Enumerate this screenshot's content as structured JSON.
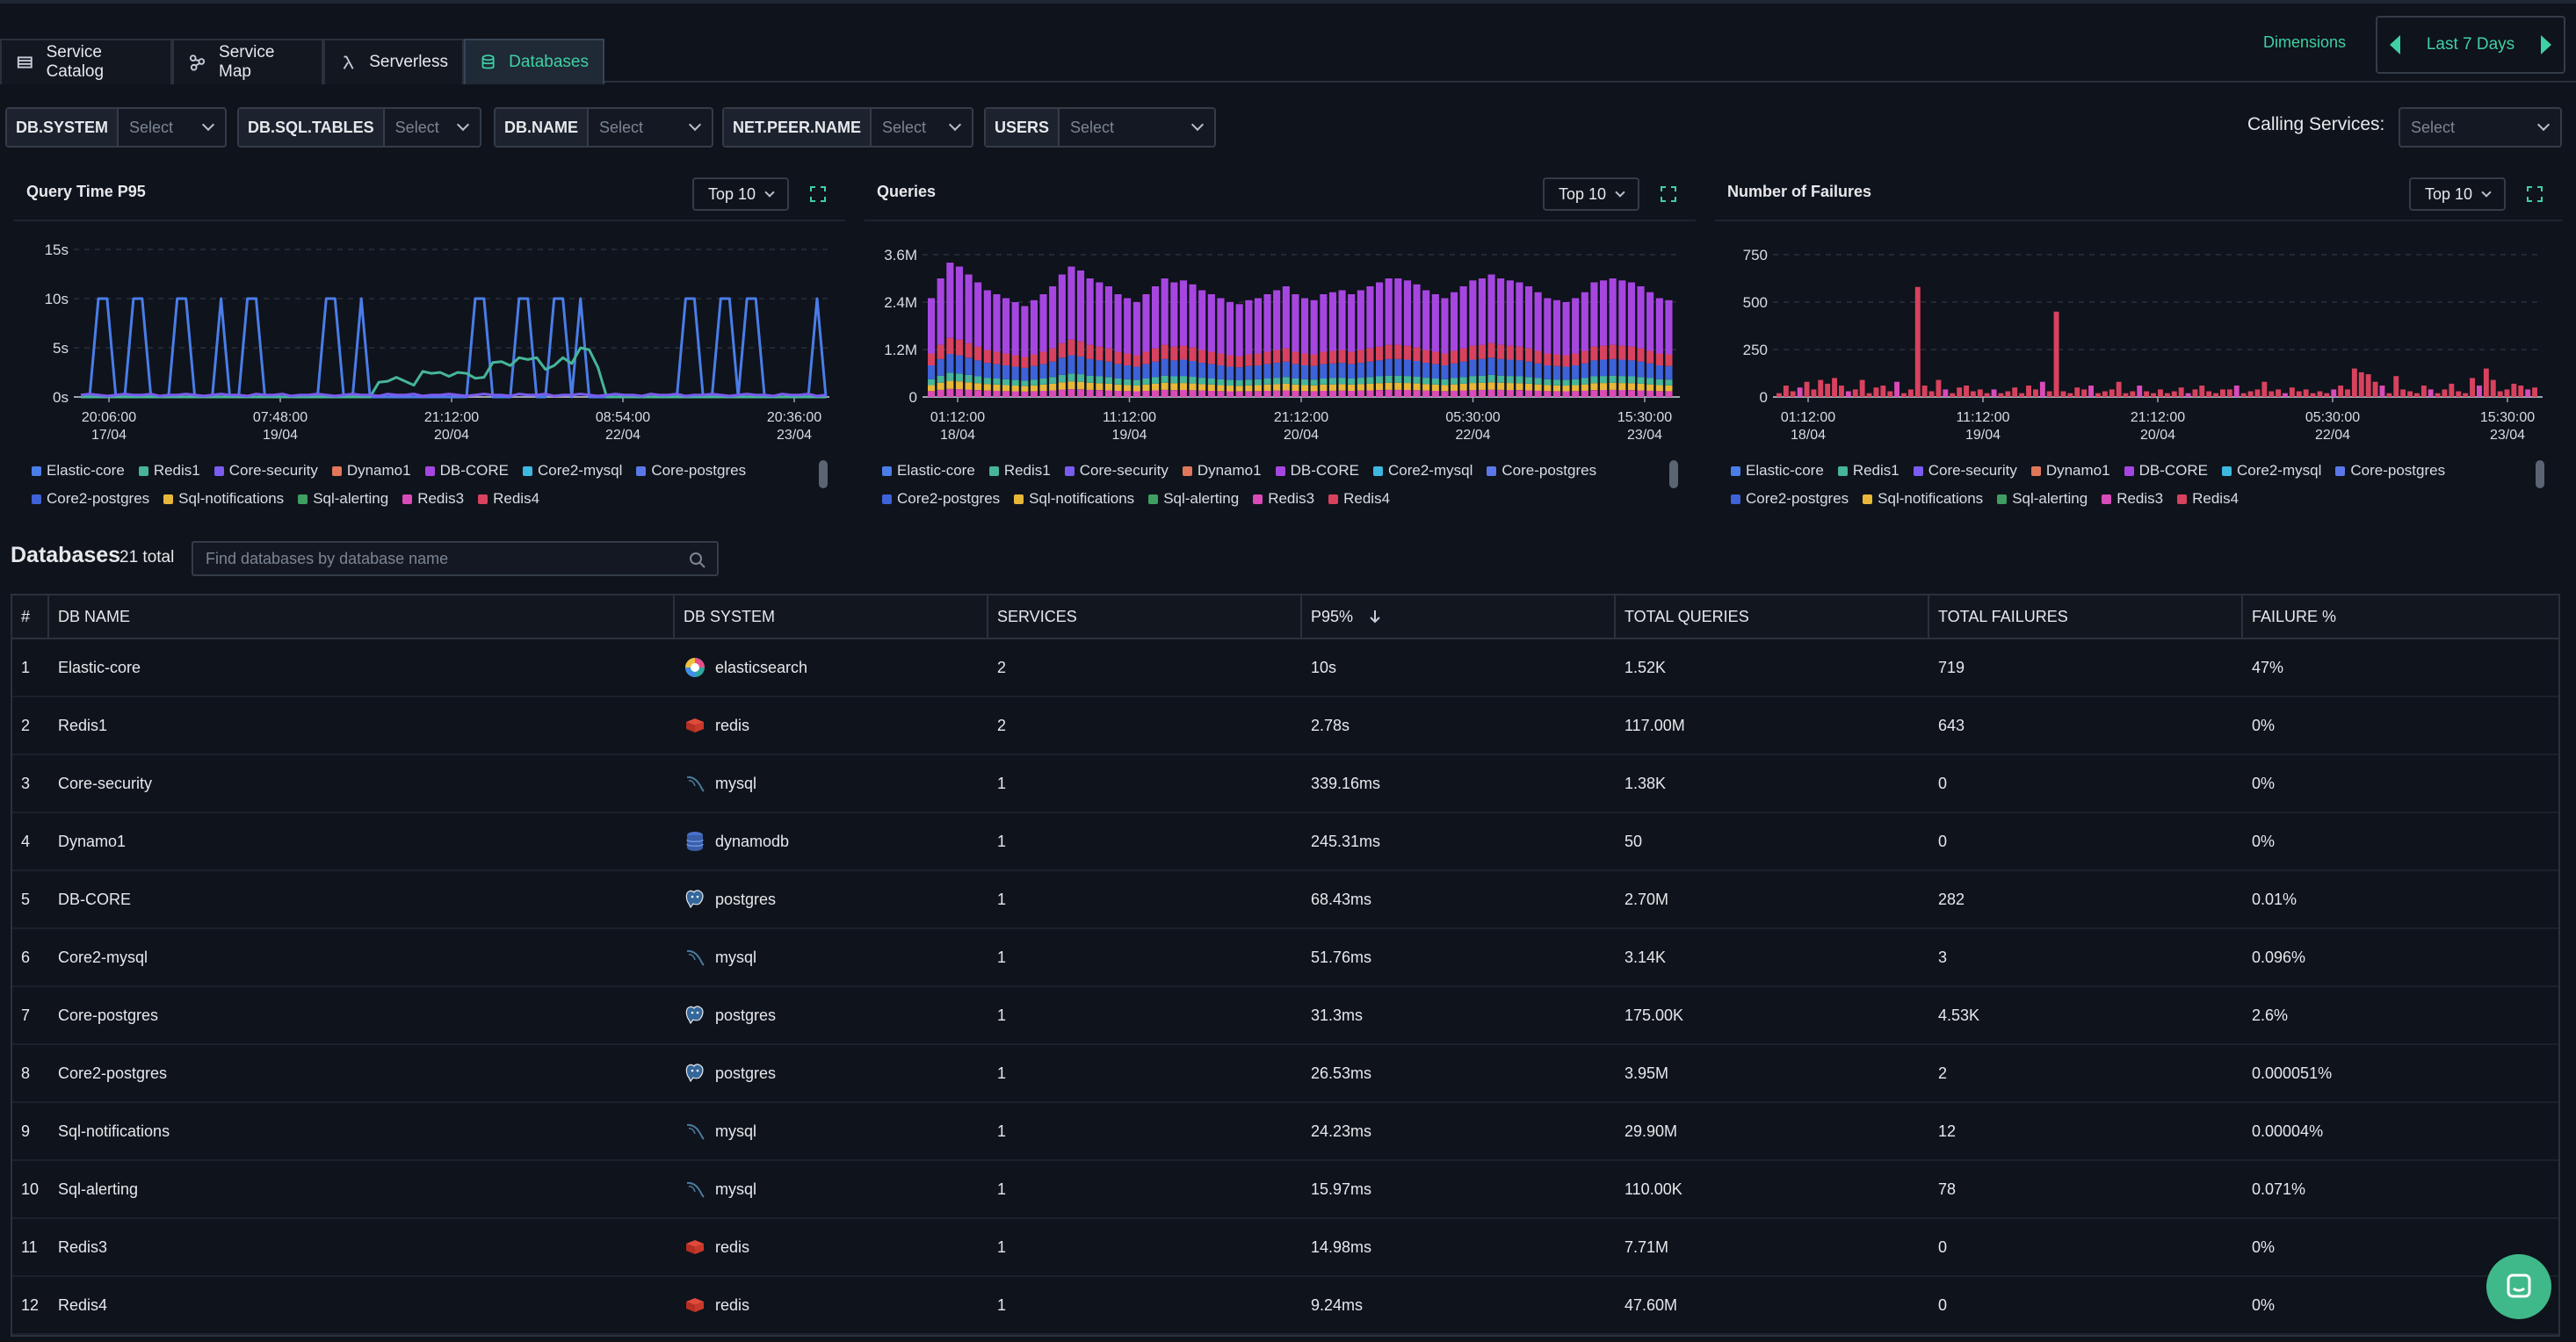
{
  "tabs": [
    {
      "label": "Service Catalog",
      "icon": "list-icon"
    },
    {
      "label": "Service Map",
      "icon": "map-icon"
    },
    {
      "label": "Serverless",
      "icon": "lambda-icon"
    },
    {
      "label": "Databases",
      "icon": "database-icon",
      "active": true
    }
  ],
  "header": {
    "dimensions_label": "Dimensions",
    "date_range": "Last 7 Days"
  },
  "filters": [
    {
      "label": "DB.SYSTEM",
      "placeholder": "Select"
    },
    {
      "label": "DB.SQL.TABLES",
      "placeholder": "Select"
    },
    {
      "label": "DB.NAME",
      "placeholder": "Select"
    },
    {
      "label": "NET.PEER.NAME",
      "placeholder": "Select"
    },
    {
      "label": "USERS",
      "placeholder": "Select"
    }
  ],
  "calling_services": {
    "label": "Calling Services:",
    "placeholder": "Select"
  },
  "colors": {
    "accent": "#3fd0a4",
    "series": {
      "Elastic-core": "#4a7de8",
      "Redis1": "#46b59a",
      "Core-security": "#7a5cf0",
      "Dynamo1": "#e0775a",
      "DB-CORE": "#a646e0",
      "Core2-mysql": "#3db8e0",
      "Core-postgres": "#5b78e8",
      "Core2-postgres": "#3e62d8",
      "Sql-notifications": "#e8b73a",
      "Sql-alerting": "#3f9e62",
      "Redis3": "#d84bb8",
      "Redis4": "#d8425e"
    }
  },
  "legend_series": [
    "Elastic-core",
    "Redis1",
    "Core-security",
    "Dynamo1",
    "DB-CORE",
    "Core2-mysql",
    "Core-postgres",
    "Core2-postgres",
    "Sql-notifications",
    "Sql-alerting",
    "Redis3",
    "Redis4"
  ],
  "chart_data": [
    {
      "type": "line",
      "title": "Query Time P95",
      "top_n": "Top 10",
      "y_ticks": [
        "15s",
        "10s",
        "5s",
        "0s"
      ],
      "ylim": [
        0,
        15
      ],
      "x_ticks": [
        {
          "time": "20:06:00",
          "date": "17/04"
        },
        {
          "time": "07:48:00",
          "date": "19/04"
        },
        {
          "time": "21:12:00",
          "date": "20/04"
        },
        {
          "time": "08:54:00",
          "date": "22/04"
        },
        {
          "time": "20:36:00",
          "date": "23/04"
        }
      ],
      "series": [
        {
          "name": "Elastic-core",
          "values": [
            0,
            0,
            10,
            10,
            0,
            0,
            10,
            10,
            0,
            0,
            0,
            10,
            10,
            0,
            0,
            0,
            10,
            0,
            0,
            10,
            10,
            0,
            0,
            0,
            0,
            0,
            0,
            0,
            10,
            10,
            0,
            0,
            10,
            0,
            0,
            0,
            0,
            0,
            0,
            0,
            0,
            0,
            0,
            0,
            0,
            10,
            10,
            0,
            0,
            0,
            10,
            10,
            0,
            0,
            10,
            10,
            0,
            10,
            0,
            0,
            0,
            0,
            0,
            0,
            0,
            0,
            0,
            0,
            0,
            10,
            10,
            0,
            0,
            10,
            10,
            0,
            10,
            10,
            0,
            0,
            0,
            0,
            0,
            0,
            10,
            0
          ]
        },
        {
          "name": "Redis1",
          "values": [
            0,
            0,
            0,
            0,
            0,
            0,
            0,
            0,
            0,
            0,
            0,
            0,
            0,
            0,
            0,
            0,
            0,
            0,
            0,
            0,
            0,
            0,
            0,
            0,
            0,
            0,
            0,
            0,
            0,
            0,
            0,
            0,
            0,
            0,
            1.5,
            1.6,
            2,
            1.6,
            1.2,
            2.6,
            2.4,
            2.5,
            2.1,
            2.5,
            2.4,
            1.9,
            2,
            3.5,
            3.6,
            3.2,
            4,
            3.8,
            4,
            2.8,
            3.2,
            4,
            3.4,
            5,
            4.8,
            3,
            0,
            0,
            0,
            0,
            0,
            0,
            0,
            0,
            0,
            0,
            0,
            0,
            0,
            0,
            0,
            0,
            0,
            0,
            0,
            0,
            0,
            0,
            0,
            0,
            0,
            0
          ]
        },
        {
          "name": "Core-security",
          "values": [
            0.2,
            0.3,
            0.2,
            0.1,
            0.2,
            0.3,
            0.2,
            0.2,
            0.3,
            0.1,
            0.2,
            0.2,
            0.3,
            0.2,
            0.1,
            0.2,
            0.3,
            0.2,
            0.2,
            0.1,
            0.3,
            0.2,
            0.2,
            0.3,
            0.1,
            0.2,
            0.2,
            0.3,
            0.2,
            0.1,
            0.2,
            0.3,
            0.2,
            0.2,
            0.1,
            0.3,
            0.2,
            0.2,
            0.3,
            0.1,
            0.2,
            0.2,
            0.3,
            0.2,
            0.1,
            0.2,
            0.3,
            0.2,
            0.2,
            0.1,
            0.3,
            0.2,
            0.2,
            0.3,
            0.1,
            0.2,
            0.2,
            0.3,
            0.2,
            0.1,
            0.2,
            0.3,
            0.2,
            0.2,
            0.1,
            0.3,
            0.2,
            0.2,
            0.3,
            0.1,
            0.2,
            0.2,
            0.3,
            0.2,
            0.1,
            0.2,
            0.3,
            0.2,
            0.2,
            0.1,
            0.3,
            0.2,
            0.2,
            0.3,
            0.1,
            0.2
          ]
        }
      ]
    },
    {
      "type": "bar",
      "title": "Queries",
      "top_n": "Top 10",
      "stacked": true,
      "y_ticks": [
        "3.6M",
        "2.4M",
        "1.2M",
        "0"
      ],
      "ylim": [
        0,
        3600000
      ],
      "x_ticks": [
        {
          "time": "01:12:00",
          "date": "18/04"
        },
        {
          "time": "11:12:00",
          "date": "19/04"
        },
        {
          "time": "21:12:00",
          "date": "20/04"
        },
        {
          "time": "05:30:00",
          "date": "22/04"
        },
        {
          "time": "15:30:00",
          "date": "23/04"
        }
      ],
      "totals": [
        2500000,
        3000000,
        3400000,
        3300000,
        3100000,
        2900000,
        2700000,
        2600000,
        2500000,
        2400000,
        2300000,
        2450000,
        2600000,
        2800000,
        3100000,
        3300000,
        3200000,
        3000000,
        2900000,
        2800000,
        2600000,
        2500000,
        2400000,
        2600000,
        2800000,
        3000000,
        2900000,
        2950000,
        2850000,
        2700000,
        2600000,
        2500000,
        2400000,
        2350000,
        2450000,
        2500000,
        2600000,
        2700000,
        2800000,
        2600000,
        2500000,
        2450000,
        2600000,
        2650000,
        2700000,
        2600000,
        2700000,
        2800000,
        2900000,
        3000000,
        3000000,
        2950000,
        2850000,
        2700000,
        2600000,
        2500000,
        2650000,
        2800000,
        2950000,
        3000000,
        3100000,
        3000000,
        2950000,
        2900000,
        2800000,
        2650000,
        2500000,
        2450000,
        2400000,
        2500000,
        2650000,
        2900000,
        2950000,
        3000000,
        2950000,
        2900000,
        2800000,
        2650000,
        2500000,
        2450000
      ],
      "segment_shares": {
        "Redis3": 0.06,
        "Sql-notifications": 0.06,
        "Redis1": 0.06,
        "Core2-postgres": 0.14,
        "Redis4": 0.12,
        "DB-CORE": 0.56
      }
    },
    {
      "type": "bar",
      "title": "Number of Failures",
      "top_n": "Top 10",
      "stacked": true,
      "y_ticks": [
        "750",
        "500",
        "250",
        "0"
      ],
      "ylim": [
        0,
        750
      ],
      "x_ticks": [
        {
          "time": "01:12:00",
          "date": "18/04"
        },
        {
          "time": "11:12:00",
          "date": "19/04"
        },
        {
          "time": "21:12:00",
          "date": "20/04"
        },
        {
          "time": "05:30:00",
          "date": "22/04"
        },
        {
          "time": "15:30:00",
          "date": "23/04"
        }
      ],
      "values": [
        20,
        60,
        30,
        50,
        80,
        40,
        90,
        70,
        100,
        60,
        30,
        40,
        90,
        20,
        50,
        60,
        30,
        80,
        20,
        40,
        580,
        60,
        30,
        90,
        40,
        20,
        50,
        60,
        30,
        40,
        20,
        40,
        20,
        30,
        50,
        20,
        60,
        40,
        80,
        30,
        450,
        30,
        20,
        50,
        40,
        60,
        20,
        30,
        40,
        80,
        20,
        30,
        60,
        30,
        20,
        40,
        20,
        30,
        50,
        20,
        40,
        60,
        30,
        20,
        40,
        40,
        60,
        20,
        30,
        40,
        80,
        30,
        40,
        20,
        50,
        30,
        40,
        20,
        30,
        20,
        40,
        60,
        40,
        150,
        130,
        120,
        80,
        60,
        20,
        110,
        40,
        30,
        20,
        60,
        40,
        20,
        40,
        70,
        30,
        20,
        100,
        60,
        150,
        90,
        30,
        40,
        70,
        60,
        40,
        50
      ]
    }
  ],
  "databases": {
    "title": "Databases",
    "total": "21 total",
    "search_placeholder": "Find databases by database name",
    "columns": [
      "#",
      "DB NAME",
      "DB SYSTEM",
      "SERVICES",
      "P95%",
      "TOTAL QUERIES",
      "TOTAL FAILURES",
      "FAILURE %"
    ],
    "rows": [
      {
        "idx": "1",
        "name": "Elastic-core",
        "system": "elasticsearch",
        "icon": "elasticsearch-icon",
        "services": "2",
        "p95": "10s",
        "queries": "1.52K",
        "failures": "719",
        "failure_pct": "47%"
      },
      {
        "idx": "2",
        "name": "Redis1",
        "system": "redis",
        "icon": "redis-icon",
        "services": "2",
        "p95": "2.78s",
        "queries": "117.00M",
        "failures": "643",
        "failure_pct": "0%"
      },
      {
        "idx": "3",
        "name": "Core-security",
        "system": "mysql",
        "icon": "mysql-icon",
        "services": "1",
        "p95": "339.16ms",
        "queries": "1.38K",
        "failures": "0",
        "failure_pct": "0%"
      },
      {
        "idx": "4",
        "name": "Dynamo1",
        "system": "dynamodb",
        "icon": "dynamodb-icon",
        "services": "1",
        "p95": "245.31ms",
        "queries": "50",
        "failures": "0",
        "failure_pct": "0%"
      },
      {
        "idx": "5",
        "name": "DB-CORE",
        "system": "postgres",
        "icon": "postgres-icon",
        "services": "1",
        "p95": "68.43ms",
        "queries": "2.70M",
        "failures": "282",
        "failure_pct": "0.01%"
      },
      {
        "idx": "6",
        "name": "Core2-mysql",
        "system": "mysql",
        "icon": "mysql-icon",
        "services": "1",
        "p95": "51.76ms",
        "queries": "3.14K",
        "failures": "3",
        "failure_pct": "0.096%"
      },
      {
        "idx": "7",
        "name": "Core-postgres",
        "system": "postgres",
        "icon": "postgres-icon",
        "services": "1",
        "p95": "31.3ms",
        "queries": "175.00K",
        "failures": "4.53K",
        "failure_pct": "2.6%"
      },
      {
        "idx": "8",
        "name": "Core2-postgres",
        "system": "postgres",
        "icon": "postgres-icon",
        "services": "1",
        "p95": "26.53ms",
        "queries": "3.95M",
        "failures": "2",
        "failure_pct": "0.000051%"
      },
      {
        "idx": "9",
        "name": "Sql-notifications",
        "system": "mysql",
        "icon": "mysql-icon",
        "services": "1",
        "p95": "24.23ms",
        "queries": "29.90M",
        "failures": "12",
        "failure_pct": "0.00004%"
      },
      {
        "idx": "10",
        "name": "Sql-alerting",
        "system": "mysql",
        "icon": "mysql-icon",
        "services": "1",
        "p95": "15.97ms",
        "queries": "110.00K",
        "failures": "78",
        "failure_pct": "0.071%"
      },
      {
        "idx": "11",
        "name": "Redis3",
        "system": "redis",
        "icon": "redis-icon",
        "services": "1",
        "p95": "14.98ms",
        "queries": "7.71M",
        "failures": "0",
        "failure_pct": "0%"
      },
      {
        "idx": "12",
        "name": "Redis4",
        "system": "redis",
        "icon": "redis-icon",
        "services": "1",
        "p95": "9.24ms",
        "queries": "47.60M",
        "failures": "0",
        "failure_pct": "0%"
      }
    ]
  }
}
